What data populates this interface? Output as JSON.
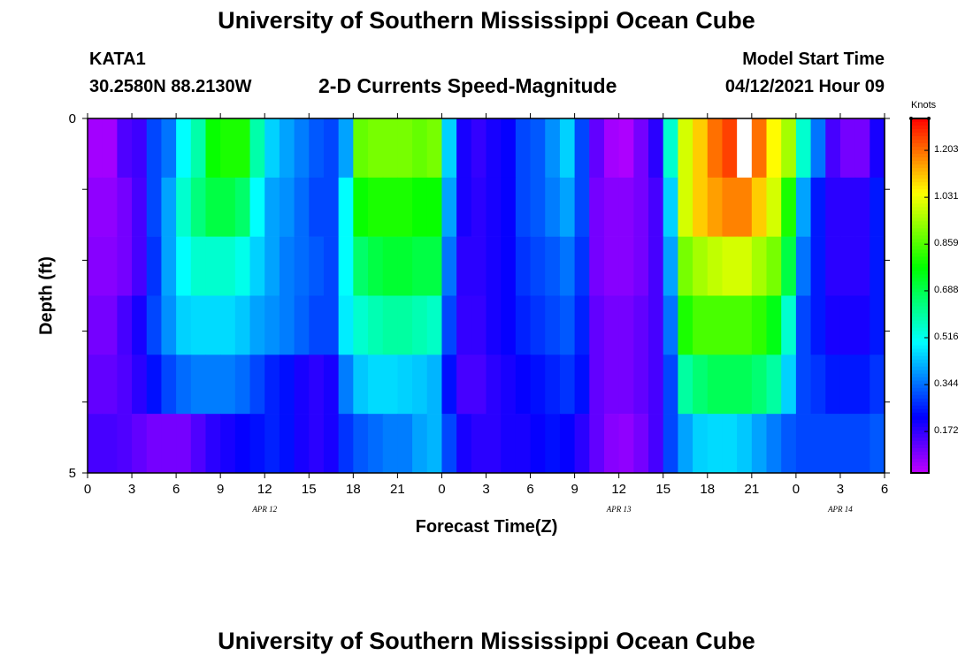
{
  "chart_data": {
    "type": "heatmap",
    "title": "University of Southern Mississippi Ocean Cube",
    "footer_title": "University of Southern Mississippi Ocean Cube",
    "station": "KATA1",
    "location": "30.2580N  88.2130W",
    "subtitle": "2-D Currents Speed-Magnitude",
    "model_start_label": "Model Start Time",
    "model_start_time": "04/12/2021 Hour 09",
    "xlabel": "Forecast Time(Z)",
    "ylabel": "Depth (ft)",
    "units": "Knots",
    "x_hours_range": [
      0,
      54
    ],
    "x_tick_values": [
      0,
      3,
      6,
      9,
      12,
      15,
      18,
      21,
      24,
      27,
      30,
      33,
      36,
      39,
      42,
      45,
      48,
      51,
      54
    ],
    "x_tick_labels": [
      "0",
      "3",
      "6",
      "9",
      "12",
      "15",
      "18",
      "21",
      "0",
      "3",
      "6",
      "9",
      "12",
      "15",
      "18",
      "21",
      "0",
      "3",
      "6"
    ],
    "date_labels": [
      {
        "label": "APR  12",
        "hour": 12
      },
      {
        "label": "APR  13",
        "hour": 36
      },
      {
        "label": "APR  14",
        "hour": 51
      }
    ],
    "y_tick_labels": [
      "0",
      "5"
    ],
    "ylim": [
      0,
      5
    ],
    "depth_layers": [
      0,
      1,
      2,
      3,
      4,
      5
    ],
    "colorbar_ticks": [
      "1.203",
      "1.031",
      "0.859",
      "0.688",
      "0.516",
      "0.344",
      "0.172"
    ],
    "colorbar_tick_values": [
      1.203,
      1.031,
      0.859,
      0.688,
      0.516,
      0.344,
      0.172
    ],
    "color_range": [
      0.02,
      1.32
    ],
    "speed_knots": [
      [
        0.05,
        0.05,
        0.14,
        0.16,
        0.3,
        0.35,
        0.5,
        0.59,
        0.78,
        0.8,
        0.8,
        0.59,
        0.45,
        0.4,
        0.36,
        0.32,
        0.3,
        0.4,
        0.88,
        0.9,
        0.9,
        0.9,
        0.88,
        0.9,
        0.45,
        0.2,
        0.17,
        0.2,
        0.22,
        0.3,
        0.32,
        0.38,
        0.45,
        0.3,
        0.12,
        0.05,
        0.04,
        0.1,
        0.18,
        0.55,
        1.0,
        1.1,
        1.2,
        1.25,
        1.3,
        1.2,
        1.05,
        0.95,
        0.55,
        0.35,
        0.15,
        0.1,
        0.1,
        0.2
      ],
      [
        0.07,
        0.07,
        0.1,
        0.15,
        0.3,
        0.4,
        0.55,
        0.64,
        0.7,
        0.7,
        0.66,
        0.5,
        0.4,
        0.38,
        0.34,
        0.3,
        0.3,
        0.5,
        0.78,
        0.8,
        0.8,
        0.8,
        0.78,
        0.78,
        0.4,
        0.2,
        0.18,
        0.2,
        0.22,
        0.3,
        0.32,
        0.36,
        0.4,
        0.3,
        0.1,
        0.08,
        0.08,
        0.1,
        0.15,
        0.45,
        1.0,
        1.1,
        1.15,
        1.18,
        1.18,
        1.1,
        1.0,
        0.8,
        0.4,
        0.25,
        0.18,
        0.18,
        0.18,
        0.25
      ],
      [
        0.08,
        0.08,
        0.1,
        0.15,
        0.28,
        0.4,
        0.5,
        0.55,
        0.55,
        0.55,
        0.52,
        0.45,
        0.4,
        0.36,
        0.34,
        0.32,
        0.3,
        0.5,
        0.66,
        0.7,
        0.72,
        0.72,
        0.7,
        0.7,
        0.35,
        0.18,
        0.18,
        0.2,
        0.22,
        0.28,
        0.3,
        0.32,
        0.35,
        0.28,
        0.1,
        0.08,
        0.08,
        0.1,
        0.15,
        0.4,
        0.9,
        0.95,
        0.98,
        1.0,
        1.0,
        0.95,
        0.9,
        0.7,
        0.35,
        0.25,
        0.18,
        0.18,
        0.18,
        0.25
      ],
      [
        0.1,
        0.1,
        0.15,
        0.2,
        0.3,
        0.38,
        0.45,
        0.46,
        0.46,
        0.46,
        0.44,
        0.4,
        0.38,
        0.36,
        0.33,
        0.3,
        0.3,
        0.48,
        0.55,
        0.58,
        0.6,
        0.6,
        0.58,
        0.56,
        0.3,
        0.17,
        0.17,
        0.2,
        0.22,
        0.26,
        0.28,
        0.3,
        0.32,
        0.26,
        0.12,
        0.1,
        0.1,
        0.12,
        0.15,
        0.35,
        0.8,
        0.85,
        0.85,
        0.85,
        0.85,
        0.82,
        0.75,
        0.55,
        0.3,
        0.25,
        0.2,
        0.2,
        0.2,
        0.25
      ],
      [
        0.12,
        0.12,
        0.14,
        0.18,
        0.24,
        0.3,
        0.34,
        0.36,
        0.36,
        0.36,
        0.34,
        0.3,
        0.26,
        0.24,
        0.2,
        0.18,
        0.2,
        0.36,
        0.44,
        0.46,
        0.46,
        0.45,
        0.44,
        0.42,
        0.24,
        0.15,
        0.15,
        0.18,
        0.2,
        0.22,
        0.24,
        0.26,
        0.28,
        0.24,
        0.12,
        0.1,
        0.1,
        0.12,
        0.15,
        0.3,
        0.6,
        0.65,
        0.68,
        0.68,
        0.68,
        0.65,
        0.6,
        0.45,
        0.3,
        0.28,
        0.25,
        0.25,
        0.25,
        0.28
      ],
      [
        0.15,
        0.15,
        0.14,
        0.12,
        0.1,
        0.1,
        0.1,
        0.14,
        0.18,
        0.2,
        0.22,
        0.24,
        0.26,
        0.24,
        0.2,
        0.18,
        0.2,
        0.28,
        0.32,
        0.34,
        0.36,
        0.36,
        0.4,
        0.42,
        0.3,
        0.2,
        0.18,
        0.18,
        0.2,
        0.2,
        0.22,
        0.24,
        0.22,
        0.18,
        0.12,
        0.08,
        0.07,
        0.1,
        0.15,
        0.3,
        0.4,
        0.45,
        0.46,
        0.46,
        0.44,
        0.4,
        0.36,
        0.32,
        0.3,
        0.3,
        0.3,
        0.3,
        0.3,
        0.32
      ]
    ],
    "missing_cells": [
      {
        "row": 0,
        "col": 44
      }
    ]
  }
}
